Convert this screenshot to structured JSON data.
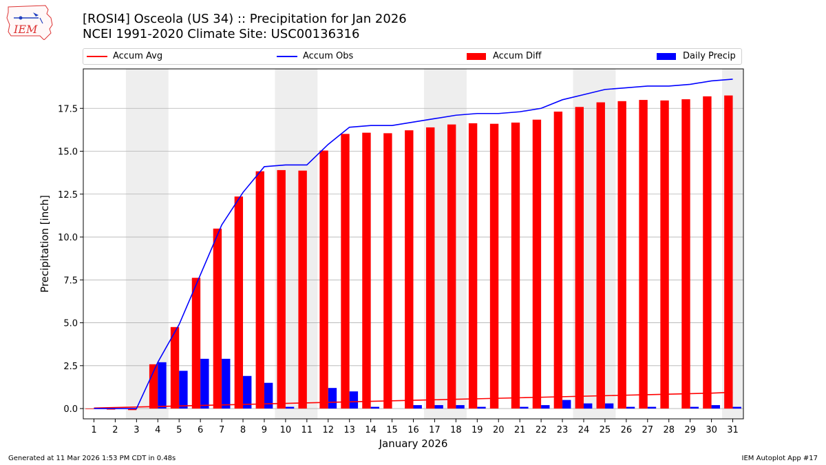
{
  "header": {
    "title_line1": "[ROSI4] Osceola (US 34) :: Precipitation for Jan 2026",
    "title_line2": "NCEI 1991-2020 Climate Site: USC00136316"
  },
  "logo": {
    "text": "IEM",
    "icon": "iowa-state-outline-icon"
  },
  "footer": {
    "left": "Generated at 11 Mar 2026 1:53 PM CDT in 0.48s",
    "right": "IEM Autoplot App #17"
  },
  "colors": {
    "accum_avg": "#ff0000",
    "accum_obs": "#0000ff",
    "accum_diff": "#ff0000",
    "daily_precip": "#0000ff",
    "weekend_shade": "#eeeeee",
    "grid": "#b0b0b0"
  },
  "chart_data": {
    "type": "bar",
    "xlabel": "January 2026",
    "ylabel": "Precipitation [inch]",
    "x": [
      1,
      2,
      3,
      4,
      5,
      6,
      7,
      8,
      9,
      10,
      11,
      12,
      13,
      14,
      15,
      16,
      17,
      18,
      19,
      20,
      21,
      22,
      23,
      24,
      25,
      26,
      27,
      28,
      29,
      30,
      31
    ],
    "ylim": [
      -0.6,
      19.8
    ],
    "yticks": [
      0.0,
      2.5,
      5.0,
      7.5,
      10.0,
      12.5,
      15.0,
      17.5
    ],
    "ytick_labels": [
      "0.0",
      "2.5",
      "5.0",
      "7.5",
      "10.0",
      "12.5",
      "15.0",
      "17.5"
    ],
    "grid": true,
    "legend": [
      "Accum Avg",
      "Accum Obs",
      "Accum Diff",
      "Daily Precip"
    ],
    "legend_position": "top",
    "shaded_weekends": [
      [
        3,
        4
      ],
      [
        10,
        11
      ],
      [
        17,
        18
      ],
      [
        24,
        25
      ],
      [
        31,
        31
      ]
    ],
    "series": [
      {
        "name": "Accum Avg",
        "kind": "line",
        "values": [
          0.03,
          0.06,
          0.09,
          0.12,
          0.15,
          0.18,
          0.21,
          0.24,
          0.27,
          0.3,
          0.33,
          0.36,
          0.39,
          0.42,
          0.45,
          0.48,
          0.51,
          0.54,
          0.57,
          0.6,
          0.63,
          0.66,
          0.69,
          0.72,
          0.75,
          0.78,
          0.81,
          0.84,
          0.87,
          0.9,
          0.95
        ]
      },
      {
        "name": "Accum Obs",
        "kind": "line",
        "values": [
          0.0,
          0.0,
          0.0,
          2.7,
          4.9,
          7.8,
          10.7,
          12.6,
          14.1,
          14.2,
          14.2,
          15.4,
          16.4,
          16.5,
          16.5,
          16.7,
          16.9,
          17.1,
          17.2,
          17.2,
          17.3,
          17.5,
          18.0,
          18.3,
          18.6,
          18.7,
          18.8,
          18.8,
          18.9,
          19.1,
          19.2
        ]
      },
      {
        "name": "Accum Diff",
        "kind": "bar",
        "values": [
          -0.03,
          -0.06,
          -0.09,
          2.58,
          4.75,
          7.62,
          10.49,
          12.36,
          13.83,
          13.9,
          13.87,
          15.04,
          16.01,
          16.08,
          16.05,
          16.22,
          16.39,
          16.56,
          16.63,
          16.6,
          16.67,
          16.84,
          17.31,
          17.58,
          17.85,
          17.92,
          17.99,
          17.96,
          18.03,
          18.2,
          18.25
        ]
      },
      {
        "name": "Daily Precip",
        "kind": "bar",
        "values": [
          0.0,
          0.0,
          0.0,
          2.7,
          2.2,
          2.9,
          2.9,
          1.9,
          1.5,
          0.1,
          0.0,
          1.2,
          1.0,
          0.1,
          0.0,
          0.2,
          0.2,
          0.2,
          0.1,
          0.0,
          0.1,
          0.2,
          0.5,
          0.3,
          0.3,
          0.1,
          0.1,
          0.0,
          0.1,
          0.2,
          0.1
        ]
      }
    ]
  }
}
